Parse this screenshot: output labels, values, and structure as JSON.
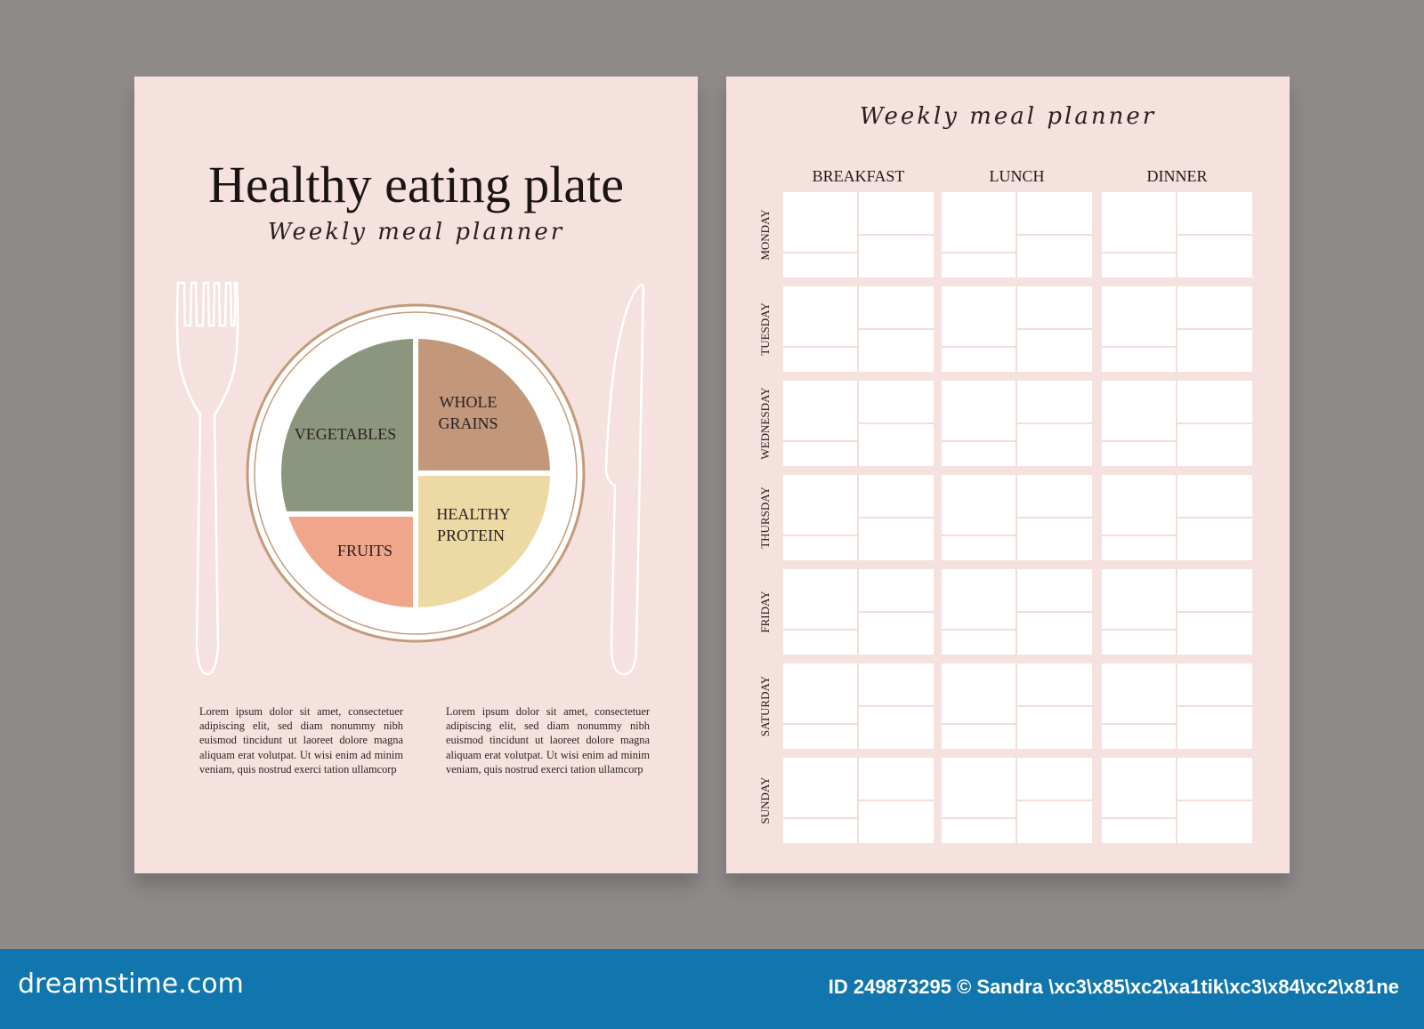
{
  "left_page": {
    "title": "Healthy eating plate",
    "subtitle": "Weekly meal planner",
    "plate": {
      "sections": [
        {
          "label": "VEGETABLES",
          "color": "#8c957e"
        },
        {
          "label": "WHOLE",
          "label2": "GRAINS",
          "color": "#c2977a"
        },
        {
          "label": "HEALTHY",
          "label2": "PROTEIN",
          "color": "#ecd9a4"
        },
        {
          "label": "FRUITS",
          "color": "#f0a68a"
        }
      ],
      "rim_color": "#c49a7c"
    },
    "paragraphs": [
      "Lorem ipsum dolor sit amet, consectetuer adipiscing elit, sed diam nonummy nibh euismod tincidunt ut laoreet dolore magna aliquam erat volutpat. Ut wisi enim ad minim veniam, quis nostrud exerci tation ullamcorp",
      "Lorem ipsum dolor sit amet, consectetuer adipiscing elit, sed diam nonummy nibh euismod tincidunt ut laoreet dolore magna aliquam erat volutpat. Ut wisi enim ad minim veniam, quis nostrud exerci tation ullamcorp"
    ]
  },
  "right_page": {
    "title": "Weekly meal planner",
    "meals": [
      "BREAKFAST",
      "LUNCH",
      "DINNER"
    ],
    "days": [
      "MONDAY",
      "TUESDAY",
      "WEDNESDAY",
      "THURSDAY",
      "FRIDAY",
      "SATURDAY",
      "SUNDAY"
    ]
  },
  "footer": {
    "logo": "dreamstime.com",
    "credit": "ID 249873295 © Sandra \\xc3\\x85\\xc2\\xa1tik\\xc3\\x84\\xc2\\x81ne",
    "color": "#1176ad"
  },
  "colors": {
    "background": "#8e8a89",
    "page": "#f5e2de"
  }
}
